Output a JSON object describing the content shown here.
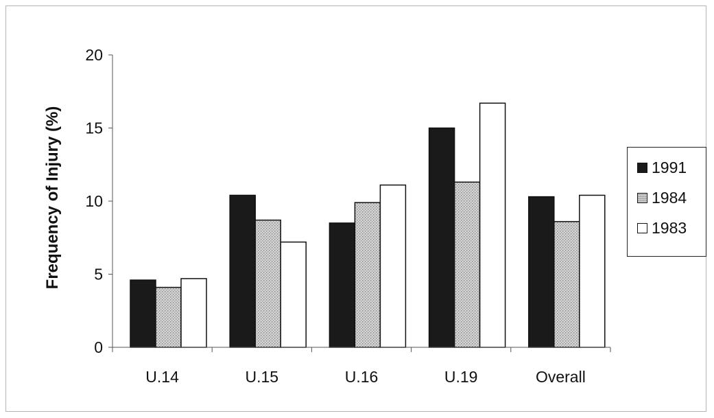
{
  "chart_data": {
    "type": "bar",
    "title": "",
    "xlabel": "",
    "ylabel": "Frequency of Injury (%)",
    "ylim": [
      0,
      20
    ],
    "yticks": [
      0,
      5,
      10,
      15,
      20
    ],
    "categories": [
      "U.14",
      "U.15",
      "U.16",
      "U.19",
      "Overall"
    ],
    "series": [
      {
        "name": "1991",
        "values": [
          4.6,
          10.4,
          8.5,
          15.0,
          10.3
        ],
        "color": "#1a1a1a"
      },
      {
        "name": "1984",
        "values": [
          4.1,
          8.7,
          9.9,
          11.3,
          8.6
        ],
        "color": "#c8c8c8"
      },
      {
        "name": "1983",
        "values": [
          4.7,
          7.2,
          11.1,
          16.7,
          10.4
        ],
        "color": "#ffffff"
      }
    ],
    "grid": false,
    "legend": "right"
  }
}
